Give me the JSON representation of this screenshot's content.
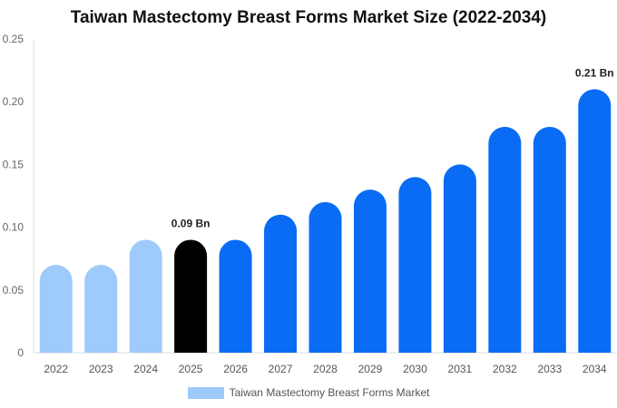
{
  "chart_data": {
    "type": "bar",
    "title": "Taiwan Mastectomy Breast Forms Market Size (2022-2034)",
    "xlabel": "",
    "ylabel": "",
    "categories": [
      "2022",
      "2023",
      "2024",
      "2025",
      "2026",
      "2027",
      "2028",
      "2029",
      "2030",
      "2031",
      "2032",
      "2033",
      "2034"
    ],
    "series": [
      {
        "name": "Taiwan Mastectomy Breast Forms Market",
        "values": [
          0.07,
          0.07,
          0.09,
          0.09,
          0.09,
          0.11,
          0.12,
          0.13,
          0.14,
          0.15,
          0.18,
          0.18,
          0.21
        ]
      }
    ],
    "bar_colors": [
      "#9ecbfb",
      "#9ecbfb",
      "#9ecbfb",
      "#000000",
      "#0a6cf5",
      "#0a6cf5",
      "#0a6cf5",
      "#0a6cf5",
      "#0a6cf5",
      "#0a6cf5",
      "#0a6cf5",
      "#0a6cf5",
      "#0a6cf5"
    ],
    "ylim": [
      0,
      0.25
    ],
    "y_ticks": [
      "0",
      "0.05",
      "0.10",
      "0.15",
      "0.20",
      "0.25"
    ],
    "y_tick_values": [
      0,
      0.05,
      0.1,
      0.15,
      0.2,
      0.25
    ],
    "annotations": [
      {
        "category": "2025",
        "text": "0.09 Bn"
      },
      {
        "category": "2034",
        "text": "0.21 Bn"
      }
    ],
    "grid": false,
    "legend_position": "bottom-center"
  }
}
